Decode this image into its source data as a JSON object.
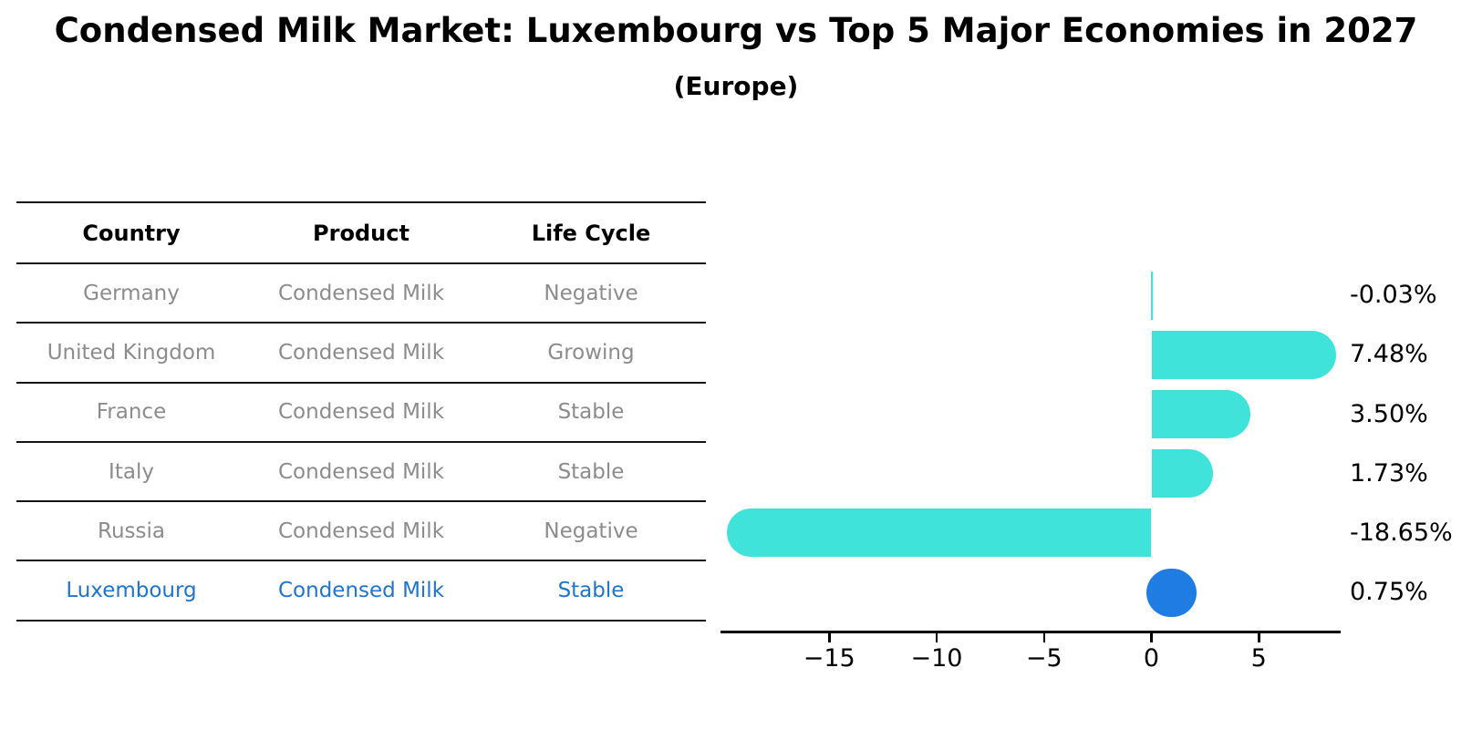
{
  "title": "Condensed Milk Market: Luxembourg vs Top 5 Major Economies in 2027",
  "subtitle": "(Europe)",
  "table": {
    "headers": [
      "Country",
      "Product",
      "Life Cycle"
    ],
    "rows": [
      {
        "country": "Germany",
        "product": "Condensed Milk",
        "life_cycle": "Negative",
        "highlight": false
      },
      {
        "country": "United Kingdom",
        "product": "Condensed Milk",
        "life_cycle": "Growing",
        "highlight": false
      },
      {
        "country": "France",
        "product": "Condensed Milk",
        "life_cycle": "Stable",
        "highlight": false
      },
      {
        "country": "Italy",
        "product": "Condensed Milk",
        "life_cycle": "Stable",
        "highlight": false
      },
      {
        "country": "Russia",
        "product": "Condensed Milk",
        "life_cycle": "Negative",
        "highlight": false
      },
      {
        "country": "Luxembourg",
        "product": "Condensed Milk",
        "life_cycle": "Stable",
        "highlight": true
      }
    ]
  },
  "chart_data": {
    "type": "bar",
    "orientation": "horizontal",
    "title": "Condensed Milk Market: Luxembourg vs Top 5 Major Economies in 2027 (Europe)",
    "categories": [
      "Germany",
      "United Kingdom",
      "France",
      "Italy",
      "Russia",
      "Luxembourg"
    ],
    "values": [
      -0.03,
      7.48,
      3.5,
      1.73,
      -18.65,
      0.75
    ],
    "value_labels": [
      "-0.03%",
      "7.48%",
      "3.50%",
      "1.73%",
      "-18.65%",
      "0.75%"
    ],
    "units": "% growth",
    "highlight_index": 5,
    "xticks": [
      -15,
      -10,
      -5,
      0,
      5
    ],
    "xtick_labels": [
      "−15",
      "−10",
      "−5",
      "0",
      "5"
    ],
    "xlim": [
      -20.1,
      8.8
    ],
    "legend": "none",
    "grid": false,
    "bar_color": "#3FE3DA",
    "highlight_color": "#1E7CE3",
    "highlight_text_color": "#1F74D1",
    "table_text_color": "#8C8C8C"
  }
}
